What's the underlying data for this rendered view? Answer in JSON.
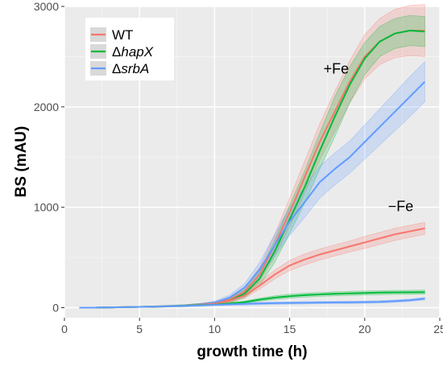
{
  "chart_data": {
    "type": "line",
    "title": "",
    "xlabel": "growth time (h)",
    "ylabel": "BS (mAU)",
    "xlim": [
      0,
      25
    ],
    "ylim": [
      -100,
      3000
    ],
    "xticks": [
      0,
      5,
      10,
      15,
      20,
      25
    ],
    "xtick_labels": [
      "0",
      "5",
      "10",
      "15",
      "20",
      "25"
    ],
    "yticks": [
      0,
      1000,
      2000,
      3000
    ],
    "ytick_labels": [
      "0",
      "1000",
      "2000",
      "3000"
    ],
    "grid": true,
    "background": "#ebebeb",
    "legend_position": "top-left",
    "legend": [
      {
        "name": "WT",
        "color": "#f8766d"
      },
      {
        "name": "ΔhapX",
        "color": "#00ba38",
        "prefix": "Δ",
        "italic": "hapX"
      },
      {
        "name": "ΔsrbA",
        "color": "#619cff",
        "prefix": "Δ",
        "italic": "srbA"
      }
    ],
    "annotations": [
      {
        "text": "+Fe",
        "x": 18.1,
        "y": 2330
      },
      {
        "text": "−Fe",
        "x": 22.4,
        "y": 960
      }
    ],
    "series": [
      {
        "name": "WT",
        "condition": "+Fe",
        "color": "#f8766d",
        "x": [
          1,
          2,
          3,
          4,
          5,
          6,
          7,
          8,
          9,
          10,
          11,
          12,
          13,
          14,
          15,
          16,
          17,
          18,
          19,
          20,
          21,
          22,
          23,
          24
        ],
        "y": [
          0,
          0,
          3,
          5,
          8,
          10,
          15,
          20,
          30,
          45,
          80,
          160,
          330,
          620,
          950,
          1300,
          1650,
          1950,
          2250,
          2500,
          2650,
          2730,
          2760,
          2760
        ],
        "band": [
          0,
          0,
          5,
          5,
          5,
          8,
          8,
          10,
          12,
          15,
          25,
          40,
          70,
          110,
          140,
          160,
          180,
          200,
          210,
          220,
          230,
          240,
          250,
          260
        ]
      },
      {
        "name": "ΔhapX",
        "condition": "+Fe",
        "color": "#00ba38",
        "x": [
          1,
          2,
          3,
          4,
          5,
          6,
          7,
          8,
          9,
          10,
          11,
          12,
          13,
          14,
          15,
          16,
          17,
          18,
          19,
          20,
          21,
          22,
          23,
          24
        ],
        "y": [
          0,
          0,
          3,
          5,
          8,
          10,
          15,
          20,
          30,
          40,
          70,
          140,
          290,
          560,
          880,
          1200,
          1560,
          1900,
          2220,
          2480,
          2650,
          2730,
          2760,
          2750
        ],
        "band": [
          0,
          0,
          5,
          5,
          5,
          8,
          8,
          10,
          12,
          15,
          25,
          40,
          70,
          110,
          140,
          160,
          180,
          200,
          180,
          160,
          150,
          150,
          150,
          150
        ]
      },
      {
        "name": "ΔsrbA",
        "condition": "+Fe",
        "color": "#619cff",
        "x": [
          1,
          2,
          3,
          4,
          5,
          6,
          7,
          8,
          9,
          10,
          11,
          12,
          13,
          14,
          15,
          16,
          17,
          18,
          19,
          20,
          21,
          22,
          23,
          24
        ],
        "y": [
          0,
          0,
          3,
          5,
          8,
          10,
          15,
          20,
          30,
          50,
          100,
          200,
          380,
          620,
          860,
          1050,
          1250,
          1380,
          1500,
          1650,
          1800,
          1950,
          2100,
          2250
        ],
        "band": [
          0,
          0,
          5,
          5,
          5,
          8,
          8,
          10,
          12,
          15,
          25,
          40,
          70,
          110,
          140,
          150,
          160,
          160,
          160,
          170,
          180,
          190,
          200,
          200
        ]
      },
      {
        "name": "WT",
        "condition": "−Fe",
        "color": "#f8766d",
        "x": [
          1,
          2,
          3,
          4,
          5,
          6,
          7,
          8,
          9,
          10,
          11,
          12,
          13,
          14,
          15,
          16,
          17,
          18,
          19,
          20,
          21,
          22,
          23,
          24
        ],
        "y": [
          0,
          0,
          3,
          5,
          8,
          10,
          15,
          20,
          28,
          40,
          70,
          120,
          220,
          330,
          420,
          480,
          530,
          570,
          610,
          650,
          690,
          730,
          760,
          790
        ],
        "band": [
          0,
          0,
          5,
          5,
          5,
          6,
          6,
          8,
          10,
          12,
          18,
          25,
          35,
          45,
          50,
          55,
          55,
          55,
          55,
          60,
          60,
          60,
          60,
          60
        ]
      },
      {
        "name": "ΔhapX",
        "condition": "−Fe",
        "color": "#00ba38",
        "x": [
          1,
          2,
          3,
          4,
          5,
          6,
          7,
          8,
          9,
          10,
          11,
          12,
          13,
          14,
          15,
          16,
          17,
          18,
          19,
          20,
          21,
          22,
          23,
          24
        ],
        "y": [
          0,
          0,
          3,
          5,
          8,
          10,
          15,
          20,
          25,
          30,
          40,
          55,
          80,
          100,
          115,
          125,
          132,
          138,
          143,
          147,
          150,
          152,
          153,
          155
        ],
        "band": [
          0,
          0,
          3,
          3,
          3,
          4,
          4,
          5,
          6,
          8,
          10,
          12,
          15,
          18,
          20,
          20,
          20,
          20,
          20,
          20,
          20,
          20,
          20,
          20
        ]
      },
      {
        "name": "ΔsrbA",
        "condition": "−Fe",
        "color": "#619cff",
        "x": [
          1,
          2,
          3,
          4,
          5,
          6,
          7,
          8,
          9,
          10,
          11,
          12,
          13,
          14,
          15,
          16,
          17,
          18,
          19,
          20,
          21,
          22,
          23,
          24
        ],
        "y": [
          0,
          0,
          3,
          5,
          8,
          10,
          15,
          18,
          22,
          28,
          33,
          38,
          42,
          45,
          47,
          49,
          51,
          52,
          53,
          55,
          58,
          65,
          75,
          90
        ],
        "band": [
          0,
          0,
          3,
          3,
          3,
          4,
          4,
          5,
          6,
          8,
          10,
          12,
          12,
          12,
          12,
          12,
          12,
          12,
          12,
          12,
          12,
          12,
          12,
          12
        ]
      }
    ]
  }
}
